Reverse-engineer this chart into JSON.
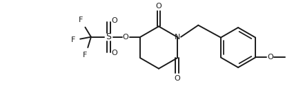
{
  "bg_color": "#ffffff",
  "line_color": "#1a1a1a",
  "line_width": 1.4,
  "font_size": 7.5,
  "figsize": [
    4.26,
    1.38
  ],
  "dpi": 100,
  "xlim": [
    0,
    10
  ],
  "ylim": [
    0,
    3.24
  ]
}
